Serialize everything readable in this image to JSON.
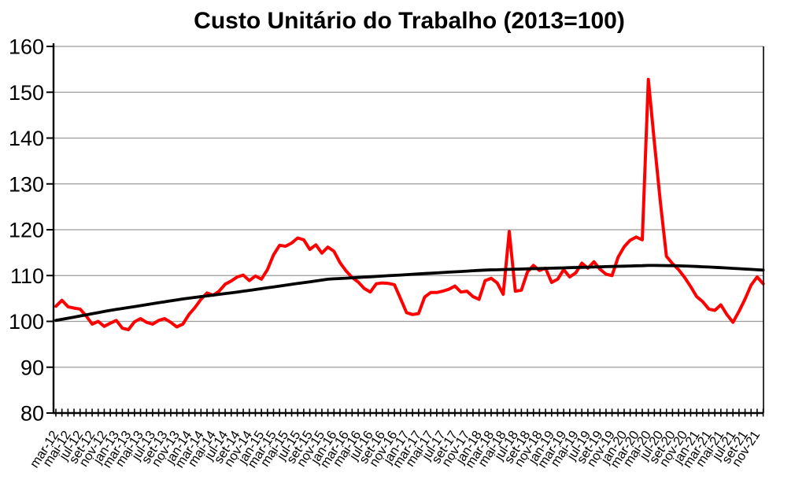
{
  "chart": {
    "title": "Custo Unitário do Trabalho (2013=100)"
  },
  "chart_data": {
    "type": "line",
    "title": "Custo Unitário do Trabalho (2013=100)",
    "xlabel": "",
    "ylabel": "",
    "ylim": [
      80,
      160
    ],
    "yticks": [
      80,
      90,
      100,
      110,
      120,
      130,
      140,
      150,
      160
    ],
    "grid": "horizontal",
    "legend_position": "none",
    "x_tick_labels": [
      "mar-12",
      "mai-12",
      "jul-12",
      "set-12",
      "nov-12",
      "jan-13",
      "mar-13",
      "mai-13",
      "jul-13",
      "set-13",
      "nov-13",
      "jan-14",
      "mar-14",
      "mai-14",
      "jul-14",
      "set-14",
      "nov-14",
      "jan-15",
      "mar-15",
      "mai-15",
      "jul-15",
      "set-15",
      "nov-15",
      "jan-16",
      "mar-16",
      "mai-16",
      "jul-16",
      "set-16",
      "nov-16",
      "jan-17",
      "mar-17",
      "mai-17",
      "jul-17",
      "set-17",
      "nov-17",
      "jan-18",
      "mar-18",
      "mai-18",
      "jul-18",
      "set-18",
      "nov-18",
      "jan-19",
      "mar-19",
      "mai-19",
      "jul-19",
      "set-19",
      "nov-19",
      "jan-20",
      "mar-20",
      "mai-20",
      "jul-20",
      "set-20",
      "nov-20",
      "jan-21",
      "mar-21",
      "mai-21",
      "jul-21",
      "set-21",
      "nov-21"
    ],
    "x": [
      "mar-12",
      "abr-12",
      "mai-12",
      "jun-12",
      "jul-12",
      "ago-12",
      "set-12",
      "out-12",
      "nov-12",
      "dez-12",
      "jan-13",
      "fev-13",
      "mar-13",
      "abr-13",
      "mai-13",
      "jun-13",
      "jul-13",
      "ago-13",
      "set-13",
      "out-13",
      "nov-13",
      "dez-13",
      "jan-14",
      "fev-14",
      "mar-14",
      "abr-14",
      "mai-14",
      "jun-14",
      "jul-14",
      "ago-14",
      "set-14",
      "out-14",
      "nov-14",
      "dez-14",
      "jan-15",
      "fev-15",
      "mar-15",
      "abr-15",
      "mai-15",
      "jun-15",
      "jul-15",
      "ago-15",
      "set-15",
      "out-15",
      "nov-15",
      "dez-15",
      "jan-16",
      "fev-16",
      "mar-16",
      "abr-16",
      "mai-16",
      "jun-16",
      "jul-16",
      "ago-16",
      "set-16",
      "out-16",
      "nov-16",
      "dez-16",
      "jan-17",
      "fev-17",
      "mar-17",
      "abr-17",
      "mai-17",
      "jun-17",
      "jul-17",
      "ago-17",
      "set-17",
      "out-17",
      "nov-17",
      "dez-17",
      "jan-18",
      "fev-18",
      "mar-18",
      "abr-18",
      "mai-18",
      "jun-18",
      "jul-18",
      "ago-18",
      "set-18",
      "out-18",
      "nov-18",
      "dez-18",
      "jan-19",
      "fev-19",
      "mar-19",
      "abr-19",
      "mai-19",
      "jun-19",
      "jul-19",
      "ago-19",
      "set-19",
      "out-19",
      "nov-19",
      "dez-19",
      "jan-20",
      "fev-20",
      "mar-20",
      "abr-20",
      "mai-20",
      "jun-20",
      "jul-20",
      "ago-20",
      "set-20",
      "out-20",
      "nov-20",
      "dez-20",
      "jan-21",
      "fev-21",
      "mar-21",
      "abr-21",
      "mai-21",
      "jun-21",
      "jul-21",
      "ago-21",
      "set-21",
      "out-21",
      "nov-21",
      "dez-21"
    ],
    "series": [
      {
        "id": "indice-mensal",
        "color": "#ff0000",
        "stroke_width": 4,
        "values": [
          103.3,
          104.6,
          103.2,
          102.9,
          102.7,
          101.2,
          99.4,
          100.0,
          98.9,
          99.6,
          100.2,
          98.5,
          98.2,
          99.9,
          100.6,
          99.8,
          99.4,
          100.2,
          100.6,
          99.8,
          98.8,
          99.4,
          101.5,
          103.0,
          104.8,
          106.2,
          105.7,
          106.6,
          108.1,
          108.8,
          109.7,
          110.1,
          108.9,
          109.9,
          109.2,
          111.3,
          114.5,
          116.6,
          116.4,
          117.1,
          118.2,
          117.8,
          115.7,
          116.7,
          114.9,
          116.2,
          115.3,
          112.8,
          111.0,
          109.6,
          108.6,
          107.2,
          106.4,
          108.2,
          108.4,
          108.3,
          108.0,
          105.0,
          101.9,
          101.5,
          101.7,
          105.3,
          106.3,
          106.3,
          106.6,
          107.0,
          107.7,
          106.4,
          106.6,
          105.4,
          104.8,
          108.9,
          109.4,
          108.4,
          105.9,
          119.6,
          106.6,
          106.8,
          110.8,
          112.2,
          111.1,
          111.6,
          108.5,
          109.2,
          111.3,
          109.7,
          110.6,
          112.7,
          111.6,
          113.0,
          111.4,
          110.3,
          110.0,
          114.0,
          116.3,
          117.7,
          118.4,
          117.8,
          152.8,
          139.0,
          126.0,
          114.2,
          112.6,
          111.3,
          109.6,
          107.6,
          105.4,
          104.3,
          102.7,
          102.4,
          103.6,
          101.5,
          99.8,
          102.2,
          104.9,
          107.9,
          109.7,
          108.2
        ]
      },
      {
        "id": "tendencia",
        "color": "#000000",
        "stroke_width": 3.8,
        "values": [
          100.2,
          100.44,
          100.69,
          100.93,
          101.18,
          101.42,
          101.67,
          101.91,
          102.16,
          102.4,
          102.61,
          102.82,
          103.03,
          103.23,
          103.44,
          103.65,
          103.86,
          104.07,
          104.28,
          104.48,
          104.69,
          104.9,
          105.07,
          105.23,
          105.4,
          105.57,
          105.73,
          105.9,
          106.07,
          106.23,
          106.4,
          106.59,
          106.77,
          106.96,
          107.15,
          107.33,
          107.52,
          107.71,
          107.89,
          108.08,
          108.27,
          108.45,
          108.64,
          108.83,
          109.01,
          109.2,
          109.28,
          109.35,
          109.43,
          109.51,
          109.58,
          109.66,
          109.74,
          109.82,
          109.89,
          109.97,
          110.05,
          110.12,
          110.2,
          110.28,
          110.35,
          110.43,
          110.51,
          110.58,
          110.66,
          110.74,
          110.82,
          110.89,
          110.97,
          111.05,
          111.12,
          111.2,
          111.24,
          111.27,
          111.31,
          111.35,
          111.39,
          111.42,
          111.46,
          111.5,
          111.53,
          111.57,
          111.61,
          111.64,
          111.68,
          111.72,
          111.76,
          111.79,
          111.83,
          111.87,
          111.9,
          111.94,
          111.98,
          112.01,
          112.05,
          112.09,
          112.13,
          112.16,
          112.2,
          112.2,
          112.19,
          112.17,
          112.15,
          112.12,
          112.08,
          112.03,
          111.98,
          111.92,
          111.86,
          111.79,
          111.72,
          111.65,
          111.57,
          111.5,
          111.42,
          111.35,
          111.27,
          111.2
        ]
      }
    ],
    "colors": {
      "series_red": "#ff0000",
      "series_black": "#000000",
      "gridline": "#9b9b9b",
      "axis": "#000000",
      "text": "#000000",
      "background": "#ffffff"
    }
  }
}
